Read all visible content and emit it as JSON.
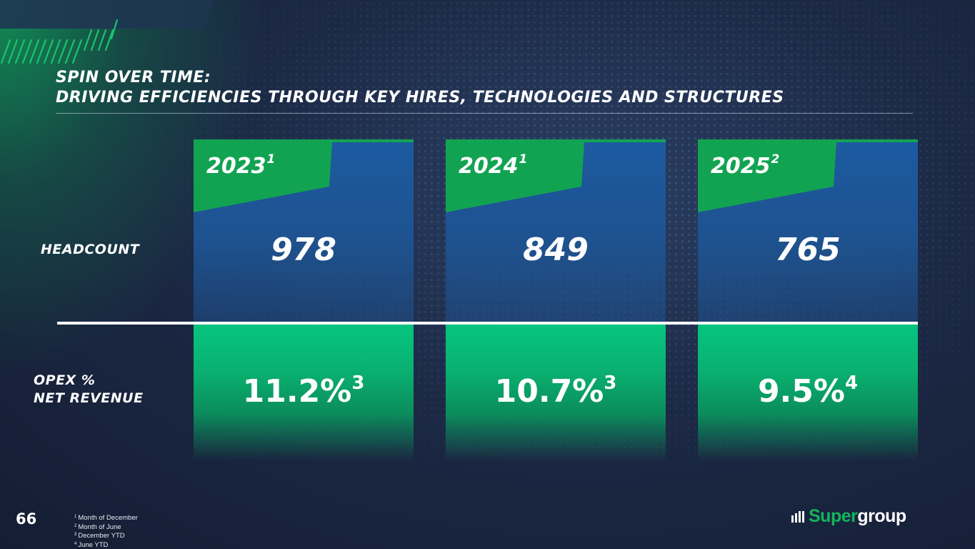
{
  "title": {
    "line1": "SPIN OVER TIME:",
    "line2": "DRIVING EFFICIENCIES THROUGH KEY HIRES, TECHNOLOGIES AND STRUCTURES"
  },
  "row_labels": {
    "headcount": "HEADCOUNT",
    "opex_line1": "OPEX %",
    "opex_line2": "NET REVENUE"
  },
  "columns": [
    {
      "year": "2023",
      "year_note": "1",
      "headcount": "978",
      "opex": "11.2%",
      "opex_note": "3"
    },
    {
      "year": "2024",
      "year_note": "1",
      "headcount": "849",
      "opex": "10.7%",
      "opex_note": "3"
    },
    {
      "year": "2025",
      "year_note": "2",
      "headcount": "765",
      "opex": "9.5%",
      "opex_note": "4"
    }
  ],
  "page_number": "66",
  "footnotes": [
    {
      "num": "1",
      "text": "Month of December"
    },
    {
      "num": "2",
      "text": "Month of June"
    },
    {
      "num": "3",
      "text": "December YTD"
    },
    {
      "num": "4",
      "text": "June YTD"
    }
  ],
  "logo": {
    "part1": "Super",
    "part2": "group",
    "icon": "bars-icon"
  },
  "colors": {
    "accent_green": "#12a352",
    "panel_blue": "#1c5aa0",
    "background": "#1c2945"
  }
}
